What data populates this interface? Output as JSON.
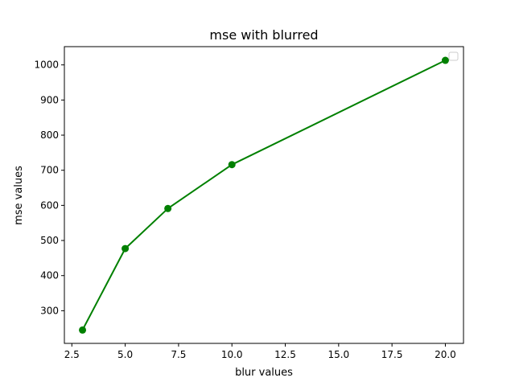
{
  "chart_data": {
    "type": "line",
    "title": "mse with blurred",
    "xlabel": "blur values",
    "ylabel": "mse values",
    "xlim": [
      2.15,
      20.85
    ],
    "ylim": [
      207,
      1052
    ],
    "xticks": [
      2.5,
      5.0,
      7.5,
      10.0,
      12.5,
      15.0,
      17.5,
      20.0
    ],
    "xtick_labels": [
      "2.5",
      "5.0",
      "7.5",
      "10.0",
      "12.5",
      "15.0",
      "17.5",
      "20.0"
    ],
    "yticks": [
      300,
      400,
      500,
      600,
      700,
      800,
      900,
      1000
    ],
    "ytick_labels": [
      "300",
      "400",
      "500",
      "600",
      "700",
      "800",
      "900",
      "1000"
    ],
    "grid": false,
    "legend": "top-right (empty)",
    "series": [
      {
        "color": "#008000",
        "marker": "circle",
        "x": [
          3,
          5,
          7,
          10,
          20
        ],
        "y": [
          245,
          477,
          591,
          716,
          1013
        ]
      }
    ]
  }
}
